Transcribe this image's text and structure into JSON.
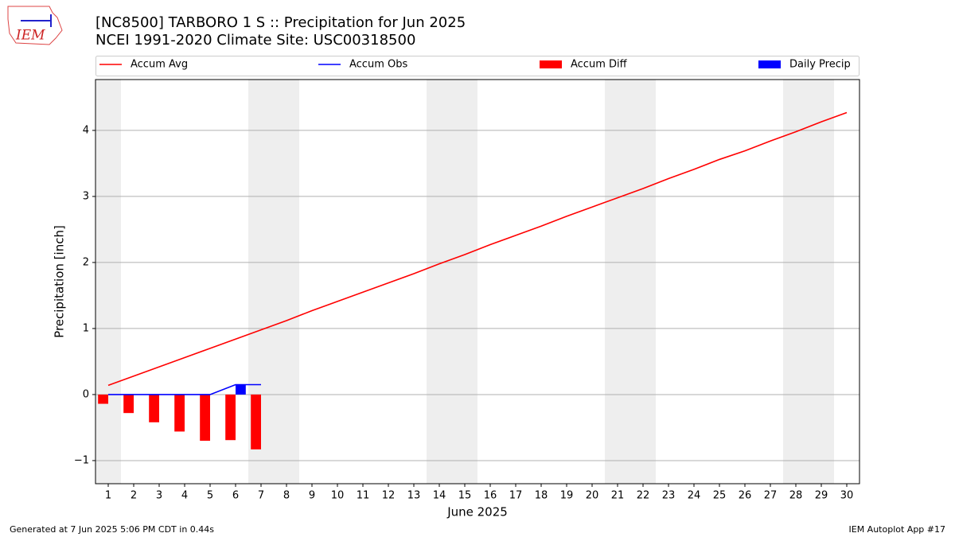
{
  "logo_text": "IEM",
  "chart_data": {
    "type": "line_bar",
    "title": "[NC8500] TARBORO 1 S :: Precipitation for Jun 2025",
    "subtitle": "NCEI 1991-2020 Climate Site: USC00318500",
    "xlabel": "June 2025",
    "ylabel": "Precipitation [inch]",
    "x": [
      1,
      2,
      3,
      4,
      5,
      6,
      7,
      8,
      9,
      10,
      11,
      12,
      13,
      14,
      15,
      16,
      17,
      18,
      19,
      20,
      21,
      22,
      23,
      24,
      25,
      26,
      27,
      28,
      29,
      30
    ],
    "xlim": [
      0.5,
      30.5
    ],
    "xticks": [
      1,
      2,
      3,
      4,
      5,
      6,
      7,
      8,
      9,
      10,
      11,
      12,
      13,
      14,
      15,
      16,
      17,
      18,
      19,
      20,
      21,
      22,
      23,
      24,
      25,
      26,
      27,
      28,
      29,
      30
    ],
    "ylim": [
      -1.35,
      4.77
    ],
    "yticks": [
      {
        "value": -1,
        "label": "−1"
      },
      0,
      1,
      2,
      3,
      4
    ],
    "grid": true,
    "weekends": [
      [
        0.5,
        1.5
      ],
      [
        6.5,
        8.5
      ],
      [
        13.5,
        15.5
      ],
      [
        20.5,
        22.5
      ],
      [
        27.5,
        29.5
      ]
    ],
    "series": [
      {
        "name": "Accum Avg",
        "color": "#ff0000",
        "kind": "line",
        "values": [
          0.14,
          0.28,
          0.42,
          0.56,
          0.7,
          0.84,
          0.98,
          1.12,
          1.27,
          1.41,
          1.55,
          1.69,
          1.83,
          1.98,
          2.12,
          2.27,
          2.41,
          2.55,
          2.7,
          2.84,
          2.98,
          3.12,
          3.27,
          3.41,
          3.56,
          3.69,
          3.84,
          3.98,
          4.13,
          4.27
        ]
      },
      {
        "name": "Accum Obs",
        "color": "#0000ff",
        "kind": "line",
        "values": [
          0,
          0,
          0,
          0,
          0,
          0.15,
          0.15,
          null,
          null,
          null,
          null,
          null,
          null,
          null,
          null,
          null,
          null,
          null,
          null,
          null,
          null,
          null,
          null,
          null,
          null,
          null,
          null,
          null,
          null,
          null
        ]
      },
      {
        "name": "Accum Diff",
        "color": "#ff0000",
        "kind": "bar",
        "offset": -0.2,
        "values": [
          -0.14,
          -0.28,
          -0.42,
          -0.56,
          -0.7,
          -0.69,
          -0.83,
          null,
          null,
          null,
          null,
          null,
          null,
          null,
          null,
          null,
          null,
          null,
          null,
          null,
          null,
          null,
          null,
          null,
          null,
          null,
          null,
          null,
          null,
          null
        ]
      },
      {
        "name": "Daily Precip",
        "color": "#0000ff",
        "kind": "bar",
        "offset": 0.2,
        "values": [
          0,
          0,
          0,
          0,
          0,
          0.15,
          0,
          null,
          null,
          null,
          null,
          null,
          null,
          null,
          null,
          null,
          null,
          null,
          null,
          null,
          null,
          null,
          null,
          null,
          null,
          null,
          null,
          null,
          null,
          null
        ]
      }
    ],
    "footer_left": "Generated at 7 Jun 2025 5:06 PM CDT in 0.44s",
    "footer_right": "IEM Autoplot App #17"
  }
}
